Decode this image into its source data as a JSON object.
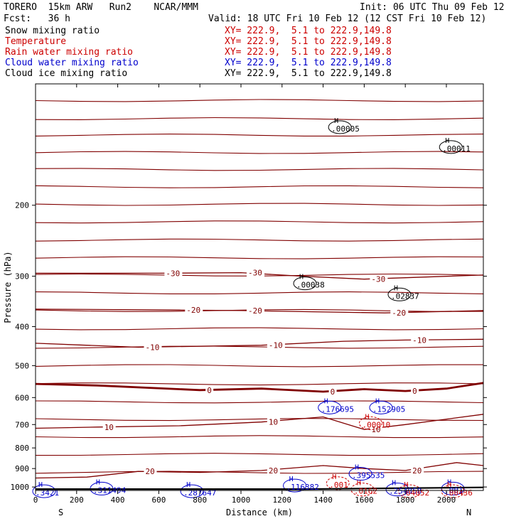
{
  "header": {
    "title": "TORERO  15km ARW   Run2    NCAR/MMM",
    "init": "Init: 06 UTC Thu 09 Feb 12",
    "fcst": "Fcst:   36 h",
    "valid": "Valid: 18 UTC Fri 10 Feb 12 (12 CST Fri 10 Feb 12)"
  },
  "fields": [
    {
      "name": "Snow mixing ratio",
      "xy": "XY= 222.9,  5.1 to 222.9,149.8",
      "color": "#000000"
    },
    {
      "name": "Temperature",
      "xy": "XY= 222.9,  5.1 to 222.9,149.8",
      "color": "#cc0000"
    },
    {
      "name": "Rain water mixing ratio",
      "xy": "XY= 222.9,  5.1 to 222.9,149.8",
      "color": "#cc0000"
    },
    {
      "name": "Cloud water mixing ratio",
      "xy": "XY= 222.9,  5.1 to 222.9,149.8",
      "color": "#0000cc"
    },
    {
      "name": "Cloud ice mixing ratio",
      "xy": "XY= 222.9,  5.1 to 222.9,149.8",
      "color": "#000000"
    }
  ],
  "chart_data": {
    "type": "line",
    "xlabel": "Distance (km)",
    "ylabel": "Pressure (hPa)",
    "xlim": [
      0,
      2180
    ],
    "ylim": [
      1020,
      100
    ],
    "y_scale": "log",
    "x_ticks": [
      0,
      200,
      400,
      600,
      800,
      1000,
      1200,
      1400,
      1600,
      1800,
      2000
    ],
    "y_ticks": [
      200,
      300,
      400,
      500,
      600,
      700,
      800,
      900,
      1000
    ],
    "x_tick_labels": [
      "0",
      "200",
      "400",
      "600",
      "800",
      "1000",
      "1200",
      "1400",
      "1600",
      "1800",
      "2000"
    ],
    "y_tick_labels": [
      "200",
      "300",
      "400",
      "500",
      "600",
      "700",
      "800",
      "900",
      "1000"
    ],
    "end_labels": {
      "left": "S",
      "right": "N"
    },
    "temperature_contours": [
      {
        "label": "-30",
        "points": [
          [
            0,
            295
          ],
          [
            600,
            295
          ],
          [
            1000,
            294
          ],
          [
            1300,
            300
          ],
          [
            1600,
            305
          ],
          [
            2180,
            298
          ]
        ]
      },
      {
        "label": "-20",
        "points": [
          [
            0,
            362
          ],
          [
            700,
            364
          ],
          [
            1000,
            365
          ],
          [
            1400,
            368
          ],
          [
            1700,
            370
          ],
          [
            2180,
            365
          ]
        ]
      },
      {
        "label": "-10",
        "points": [
          [
            0,
            440
          ],
          [
            500,
            450
          ],
          [
            1100,
            445
          ],
          [
            1500,
            435
          ],
          [
            1800,
            432
          ],
          [
            2180,
            430
          ]
        ]
      },
      {
        "label": "0",
        "points": [
          [
            0,
            555
          ],
          [
            300,
            560
          ],
          [
            800,
            575
          ],
          [
            1100,
            570
          ],
          [
            1400,
            580
          ],
          [
            1600,
            572
          ],
          [
            1800,
            578
          ],
          [
            2000,
            570
          ],
          [
            2180,
            552
          ]
        ]
      },
      {
        "label": "10",
        "points": [
          [
            0,
            715
          ],
          [
            300,
            710
          ],
          [
            700,
            705
          ],
          [
            1100,
            690
          ],
          [
            1400,
            670
          ],
          [
            1600,
            720
          ],
          [
            1800,
            700
          ],
          [
            2180,
            660
          ]
        ]
      },
      {
        "label": "20",
        "points": [
          [
            0,
            950
          ],
          [
            250,
            945
          ],
          [
            500,
            915
          ],
          [
            800,
            920
          ],
          [
            1100,
            910
          ],
          [
            1400,
            885
          ],
          [
            1600,
            900
          ],
          [
            1800,
            910
          ],
          [
            2050,
            870
          ],
          [
            2180,
            885
          ]
        ]
      }
    ],
    "isotherm_levels": [
      110,
      122,
      134,
      148,
      163,
      180,
      199,
      220,
      244,
      270,
      298,
      330,
      365,
      405,
      450,
      500,
      555,
      615,
      680,
      750,
      830,
      920
    ],
    "annotations": [
      {
        "text": "H",
        "value": ".00005",
        "x": 1440,
        "y": 125,
        "color": "#000000"
      },
      {
        "text": "H",
        "value": ".00011",
        "x": 1980,
        "y": 140,
        "color": "#000000"
      },
      {
        "text": "H",
        "value": ".00038",
        "x": 1270,
        "y": 305,
        "color": "#000000"
      },
      {
        "text": "H",
        "value": ".02837",
        "x": 1730,
        "y": 325,
        "color": "#000000"
      },
      {
        "text": "H",
        "value": ".176695",
        "x": 1390,
        "y": 620,
        "color": "#0000cc"
      },
      {
        "text": "H",
        "value": ".152905",
        "x": 1640,
        "y": 620,
        "color": "#0000cc"
      },
      {
        "text": "H",
        "value": ".00010",
        "x": 1590,
        "y": 678,
        "color": "#cc0000"
      },
      {
        "text": "H",
        "value": ".395535",
        "x": 1540,
        "y": 905,
        "color": "#0000cc"
      },
      {
        "text": "H",
        "value": ".116382",
        "x": 1220,
        "y": 968,
        "color": "#0000cc"
      },
      {
        "text": "H",
        "value": ".311494",
        "x": 280,
        "y": 985,
        "color": "#0000cc"
      },
      {
        "text": "H",
        "value": ".287647",
        "x": 720,
        "y": 1000,
        "color": "#0000cc"
      },
      {
        "text": "H",
        "value": ".0162",
        "x": 1550,
        "y": 990,
        "color": "#cc0000"
      },
      {
        "text": "H",
        "value": ".254358",
        "x": 1720,
        "y": 990,
        "color": "#0000cc"
      },
      {
        "text": "H",
        "value": ".04052",
        "x": 1780,
        "y": 1000,
        "color": "#cc0000"
      },
      {
        "text": "H",
        "value": ".001",
        "x": 1990,
        "y": 985,
        "color": "#0000cc"
      },
      {
        "text": "H",
        "value": ".00436",
        "x": 1990,
        "y": 1000,
        "color": "#cc0000"
      },
      {
        "text": "H",
        "value": ".001",
        "x": 1430,
        "y": 955,
        "color": "#cc0000"
      },
      {
        "text": "H",
        "value": ".3421",
        "x": 0,
        "y": 1000,
        "color": "#0000cc"
      }
    ],
    "colors": {
      "isotherm": "#800000",
      "freezing": "#800000",
      "cloud_water": "#0000cc",
      "rain_water": "#cc0000",
      "terrain": "#000000"
    }
  }
}
